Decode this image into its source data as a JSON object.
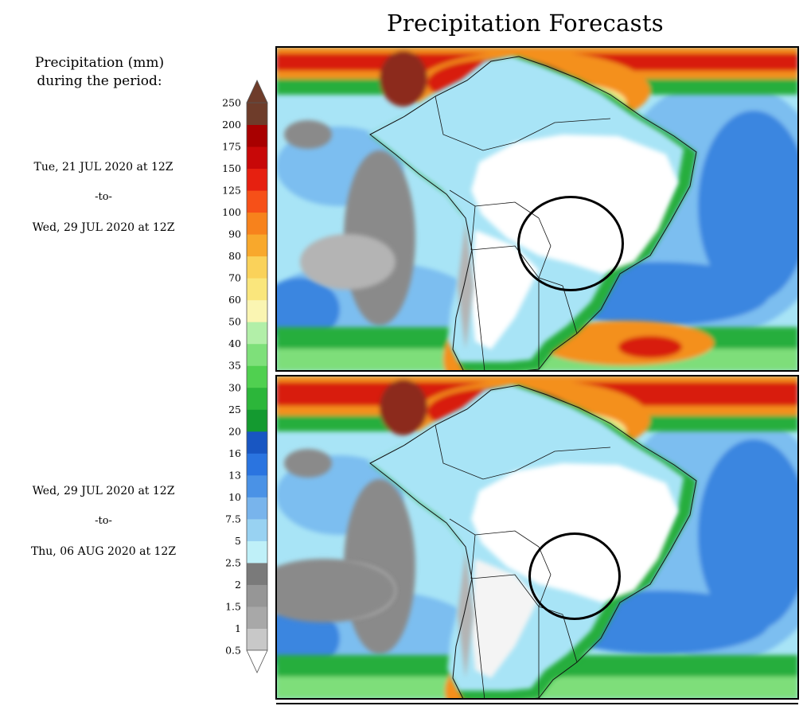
{
  "title": "Precipitation Forecasts",
  "legend": {
    "heading_line1": "Precipitation (mm)",
    "heading_line2": "during the period:",
    "levels": [
      "0.5",
      "1",
      "1.5",
      "2",
      "2.5",
      "5",
      "7.5",
      "10",
      "13",
      "16",
      "20",
      "25",
      "30",
      "35",
      "40",
      "50",
      "60",
      "70",
      "80",
      "90",
      "100",
      "125",
      "150",
      "175",
      "200",
      "250"
    ],
    "colors": [
      "#c8c8c8",
      "#a8a8a8",
      "#969696",
      "#7a7a7a",
      "#bff0f8",
      "#98d2f2",
      "#78b4ec",
      "#4a92e6",
      "#2a74e0",
      "#1856c2",
      "#149a30",
      "#2cb63a",
      "#50d050",
      "#7ee07a",
      "#b2efa8",
      "#faf5b2",
      "#fae67c",
      "#fad25a",
      "#f8a82c",
      "#f7821c",
      "#f65018",
      "#e62010",
      "#c80808",
      "#a80000",
      "#6e3c2a"
    ],
    "cap_top_color": "#6e3c2a"
  },
  "periods": [
    {
      "start": "Tue, 21 JUL 2020 at 12Z",
      "sep": "-to-",
      "end": "Wed, 29 JUL 2020 at 12Z"
    },
    {
      "start": "Wed, 29 JUL 2020 at 12Z",
      "sep": "-to-",
      "end": "Thu, 06 AUG 2020 at 12Z"
    }
  ],
  "palette": {
    "ocean_light": "#a8e4f6",
    "ocean_mid": "#7cbef0",
    "ocean_blue": "#3a86e0",
    "gray": "#8a8a8a",
    "light_gray": "#b4b4b4",
    "green": "#28ae3c",
    "light_green": "#7ede7a",
    "orange": "#f4901e",
    "red": "#d81a10",
    "darkred": "#8c2a1a",
    "yellow": "#f8ea8c",
    "land_dry": "#ffffff"
  }
}
